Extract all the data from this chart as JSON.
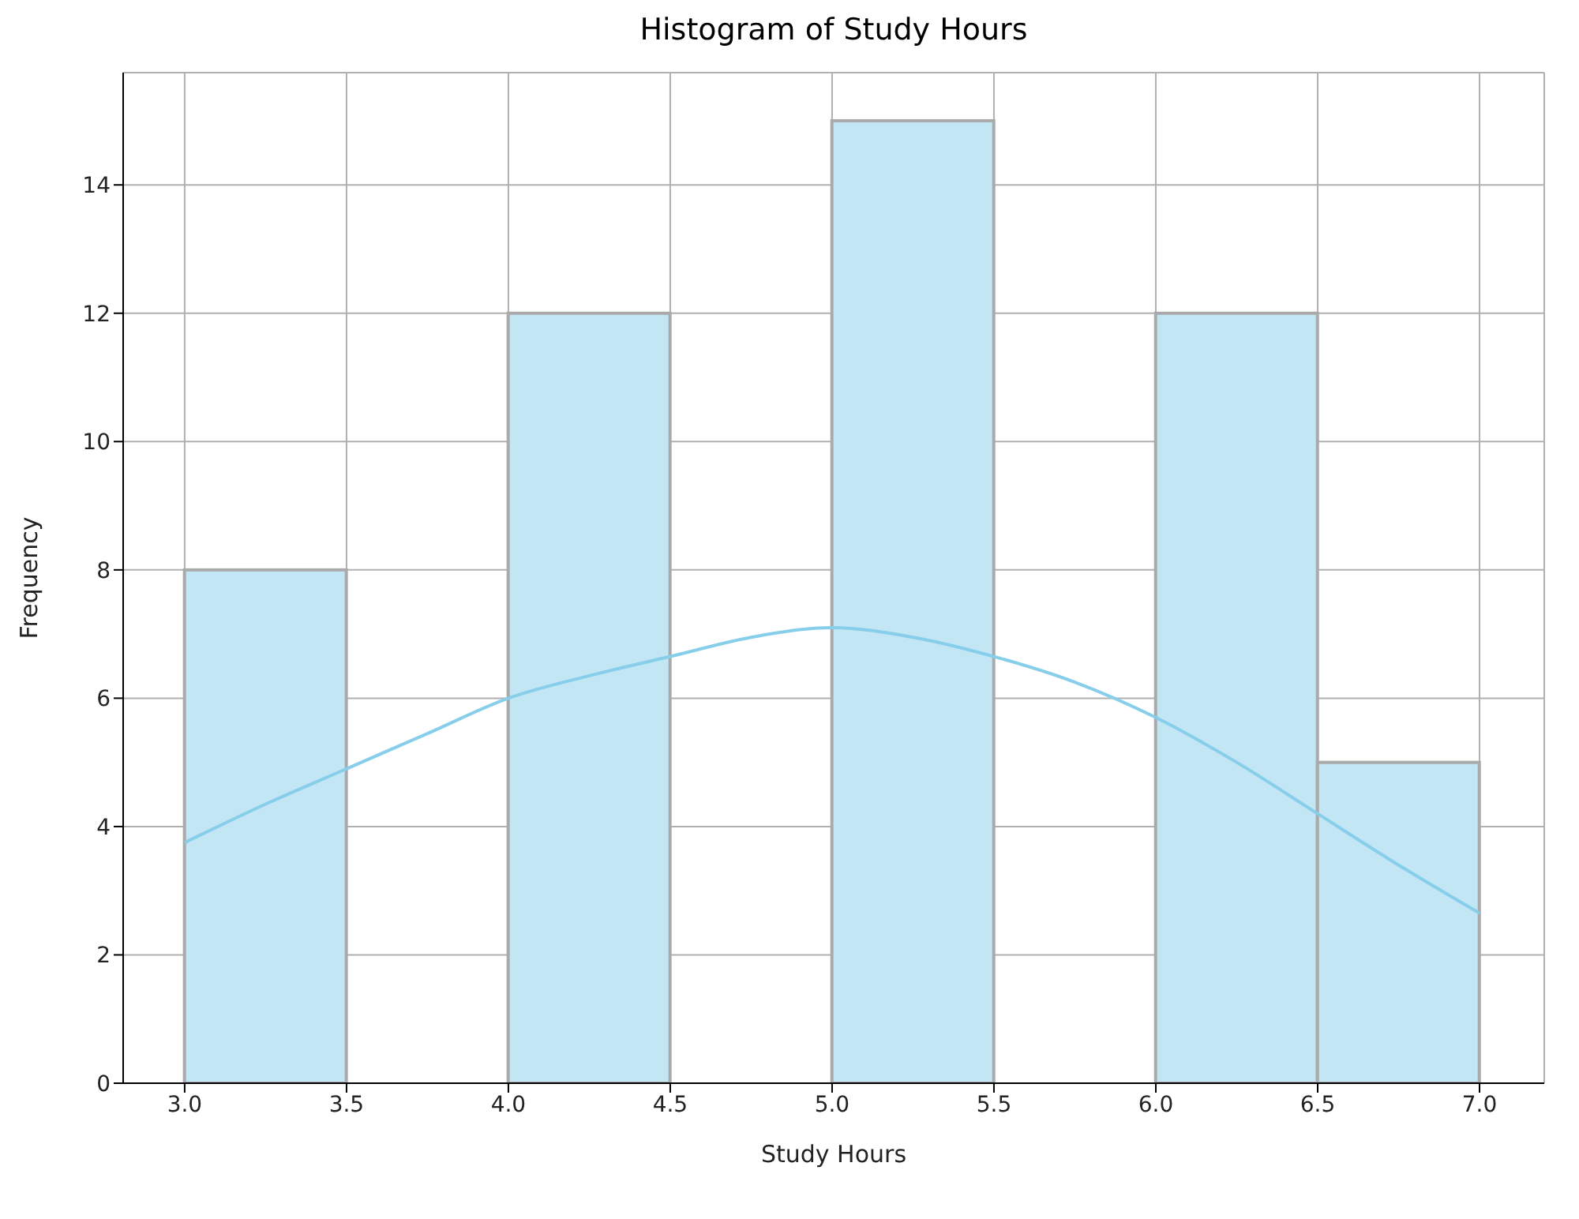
{
  "chart_data": {
    "type": "histogram",
    "title": "Histogram of Study Hours",
    "xlabel": "Study Hours",
    "ylabel": "Frequency",
    "bins": [
      3.0,
      3.5,
      4.0,
      4.5,
      5.0,
      5.5,
      6.0,
      6.5,
      7.0
    ],
    "values": [
      8,
      0,
      12,
      0,
      15,
      0,
      12,
      5
    ],
    "color": "#c3e6f5",
    "series": [
      {
        "type": "line",
        "color": "#87ceeb",
        "x": [
          3.0,
          3.25,
          3.5,
          3.75,
          4.0,
          4.25,
          4.5,
          4.75,
          5.0,
          5.25,
          5.5,
          5.75,
          6.0,
          6.25,
          6.5,
          6.75,
          7.0
        ],
        "values": [
          3.75,
          4.35,
          4.9,
          5.45,
          6.0,
          6.35,
          6.65,
          6.95,
          7.1,
          6.95,
          6.65,
          6.25,
          5.7,
          5.0,
          4.2,
          3.4,
          2.65
        ]
      }
    ],
    "xlim": [
      2.81,
      7.2
    ],
    "xticks": [
      {
        "value": 3,
        "label": "3.0"
      },
      {
        "value": 3.5,
        "label": "3.5"
      },
      {
        "value": 4,
        "label": "4.0"
      },
      {
        "value": 4.5,
        "label": "4.5"
      },
      {
        "value": 5,
        "label": "5.0"
      },
      {
        "value": 5.5,
        "label": "5.5"
      },
      {
        "value": 6,
        "label": "6.0"
      },
      {
        "value": 6.5,
        "label": "6.5"
      },
      {
        "value": 7,
        "label": "7.0"
      }
    ],
    "ylim": [
      0,
      15.75
    ],
    "yticks": [
      0,
      2,
      4,
      6,
      8,
      10,
      12,
      14
    ],
    "grid": true
  }
}
